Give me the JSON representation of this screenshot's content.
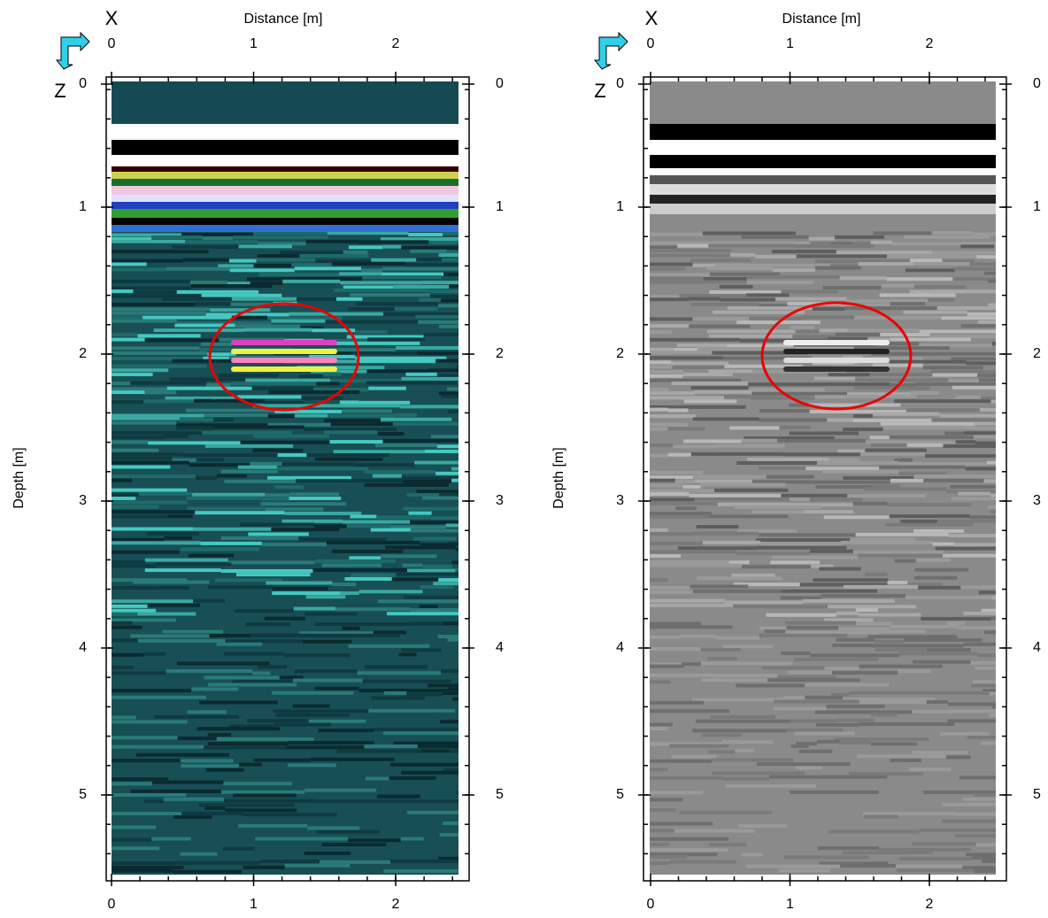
{
  "panels": [
    {
      "x_marker": "X",
      "z_marker": "Z",
      "x_label": "Distance [m]",
      "y_label": "Depth [m]",
      "distance_ticks": [
        0,
        1,
        2
      ],
      "depth_ticks": [
        0,
        1,
        2,
        3,
        4,
        5
      ]
    },
    {
      "x_marker": "X",
      "z_marker": "Z",
      "x_label": "Distance [m]",
      "y_label": "Depth [m]",
      "distance_ticks": [
        0,
        1,
        2
      ],
      "depth_ticks": [
        0,
        1,
        2,
        3,
        4,
        5
      ]
    }
  ]
}
